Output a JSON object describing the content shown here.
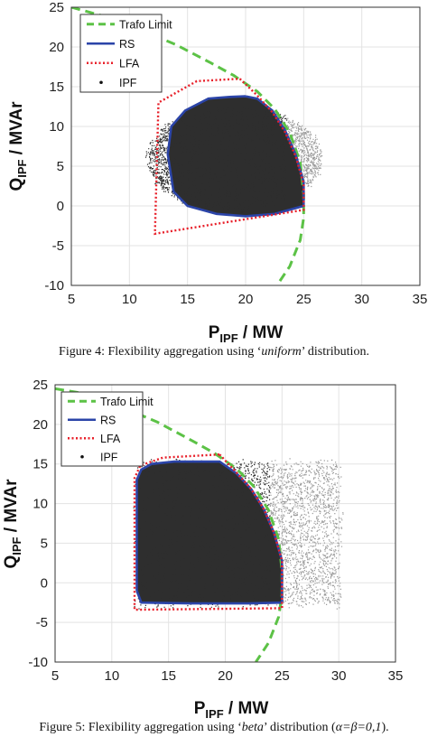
{
  "colors": {
    "trafo": "#5cc246",
    "rs": "#2b44a8",
    "lfa": "#e8202a",
    "ipf_dense": "#2e2e2e",
    "ipf_light": "#9a9a9a",
    "grid": "#e3e3e3"
  },
  "chart_data": [
    {
      "type": "scatter",
      "xlabel": "P_IPF / MW",
      "ylabel": "Q_IPF / MVAr",
      "xlim": [
        5,
        35
      ],
      "ylim": [
        -10,
        25
      ],
      "xticks": [
        "5",
        "10",
        "15",
        "20",
        "25",
        "30",
        "35"
      ],
      "yticks": [
        "-10",
        "-5",
        "0",
        "5",
        "10",
        "15",
        "20",
        "25"
      ],
      "grid": true,
      "legend": {
        "placement": "top-left",
        "entries": [
          "Trafo Limit",
          "RS",
          "LFA",
          "IPF"
        ]
      },
      "series": [
        {
          "name": "Trafo Limit",
          "style": "dashed",
          "x": [
            5.0,
            8.0,
            11.0,
            14.0,
            17.0,
            19.0,
            21.0,
            22.5,
            23.8,
            24.7,
            25.0,
            25.0,
            24.7,
            23.8,
            22.7
          ],
          "y": [
            25.0,
            23.8,
            22.1,
            20.3,
            18.0,
            16.4,
            14.4,
            12.2,
            9.2,
            5.5,
            1.5,
            -1.5,
            -4.3,
            -7.6,
            -10.0
          ]
        },
        {
          "name": "RS",
          "style": "solid",
          "x": [
            20.0,
            21.0,
            22.3,
            23.4,
            24.3,
            25.0,
            25.0,
            22.5,
            20.0,
            17.5,
            15.0,
            13.8,
            13.3,
            13.6,
            14.8,
            16.8,
            18.5,
            20.0
          ],
          "y": [
            13.8,
            13.5,
            12.0,
            9.5,
            6.5,
            3.0,
            0.0,
            -1.0,
            -1.3,
            -1.0,
            0.0,
            1.8,
            6.5,
            10.0,
            12.0,
            13.5,
            13.7,
            13.8
          ]
        },
        {
          "name": "LFA",
          "style": "dotted",
          "x": [
            19.5,
            21.0,
            22.3,
            23.4,
            24.3,
            25.0,
            25.0,
            12.2,
            12.5,
            15.8,
            19.5
          ],
          "y": [
            16.0,
            13.9,
            11.8,
            9.3,
            6.3,
            2.8,
            -0.5,
            -3.5,
            13.0,
            15.7,
            16.0
          ]
        },
        {
          "name": "IPF",
          "style": "points",
          "center": [
            19.0,
            6.0
          ],
          "extent_x": [
            13.5,
            28.5
          ],
          "extent_y": [
            -0.5,
            12.5
          ]
        }
      ]
    },
    {
      "type": "scatter",
      "xlabel": "P_IPF / MW",
      "ylabel": "Q_IPF / MVAr",
      "xlim": [
        5,
        35
      ],
      "ylim": [
        -10,
        25
      ],
      "xticks": [
        "5",
        "10",
        "15",
        "20",
        "25",
        "30",
        "35"
      ],
      "yticks": [
        "-10",
        "-5",
        "0",
        "5",
        "10",
        "15",
        "20",
        "25"
      ],
      "grid": true,
      "legend": {
        "placement": "top-left",
        "entries": [
          "Trafo Limit",
          "RS",
          "LFA",
          "IPF"
        ]
      },
      "series": [
        {
          "name": "Trafo Limit",
          "style": "dashed",
          "x": [
            5.0,
            8.0,
            11.0,
            14.0,
            17.0,
            19.0,
            21.0,
            22.5,
            23.8,
            24.7,
            25.0,
            25.0,
            24.7,
            23.8,
            22.7
          ],
          "y": [
            24.5,
            23.8,
            22.1,
            20.3,
            18.0,
            16.4,
            14.4,
            12.2,
            9.2,
            5.5,
            1.5,
            -1.5,
            -4.3,
            -7.6,
            -10.0
          ]
        },
        {
          "name": "RS",
          "style": "solid",
          "x": [
            12.2,
            12.2,
            12.6,
            13.5,
            15.5,
            19.5,
            21.0,
            22.3,
            23.4,
            24.3,
            25.0,
            25.0,
            22.0,
            17.0,
            12.6,
            12.2
          ],
          "y": [
            -1.0,
            13.0,
            14.3,
            15.0,
            15.3,
            15.3,
            13.8,
            11.8,
            9.3,
            6.3,
            2.8,
            -2.5,
            -2.6,
            -2.6,
            -2.5,
            -1.0
          ]
        },
        {
          "name": "LFA",
          "style": "dotted",
          "x": [
            19.5,
            21.0,
            22.3,
            23.4,
            24.3,
            25.0,
            25.0,
            12.0,
            12.0,
            12.5,
            14.5,
            19.5
          ],
          "y": [
            16.2,
            13.9,
            11.8,
            9.3,
            6.3,
            2.8,
            -3.2,
            -3.4,
            13.2,
            14.8,
            15.8,
            16.2
          ]
        },
        {
          "name": "IPF",
          "style": "points",
          "center": [
            19.0,
            6.0
          ],
          "extent_x": [
            12.2,
            30.0
          ],
          "extent_y": [
            -2.7,
            15.2
          ]
        }
      ]
    }
  ],
  "captions": {
    "fig4": {
      "prefix": "Figure 4: Flexibility aggregation using ‘",
      "emph": "uniform",
      "suffix": "’ distribution."
    },
    "fig5": {
      "prefix": "Figure 5: Flexibility aggregation using ‘",
      "emph": "beta",
      "suffix": "’ distribution (",
      "params": "α=β=0,1",
      "end": ")."
    }
  }
}
